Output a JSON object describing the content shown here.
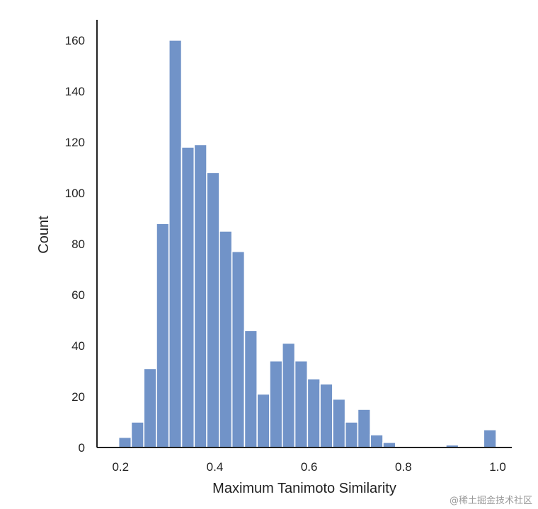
{
  "chart_data": {
    "type": "bar",
    "title": "",
    "xlabel": "Maximum Tanimoto Similarity",
    "ylabel": "Count",
    "xlim": [
      0.15,
      1.03
    ],
    "ylim": [
      0,
      168
    ],
    "bar_color": "#7193c8",
    "axis_color": "#222222",
    "grid": false,
    "x_ticks": [
      0.2,
      0.4,
      0.6,
      0.8,
      1.0
    ],
    "x_tick_labels": [
      "0.2",
      "0.4",
      "0.6",
      "0.8",
      "1.0"
    ],
    "y_ticks": [
      0,
      20,
      40,
      60,
      80,
      100,
      120,
      140,
      160
    ],
    "y_tick_labels": [
      "0",
      "20",
      "40",
      "60",
      "80",
      "100",
      "120",
      "140",
      "160"
    ],
    "bin_width": 0.0267,
    "bin_starts": [
      0.196,
      0.2227,
      0.2494,
      0.2761,
      0.3028,
      0.3295,
      0.3562,
      0.3829,
      0.4096,
      0.4363,
      0.463,
      0.4897,
      0.5164,
      0.5431,
      0.5698,
      0.5965,
      0.6232,
      0.6499,
      0.6766,
      0.7033,
      0.73,
      0.7567,
      0.7834,
      0.8101,
      0.8368,
      0.8635,
      0.8902,
      0.9169,
      0.9436,
      0.9703
    ],
    "values": [
      4,
      10,
      31,
      88,
      160,
      118,
      119,
      108,
      85,
      77,
      46,
      21,
      34,
      41,
      34,
      27,
      25,
      19,
      10,
      15,
      5,
      2,
      0,
      0,
      0,
      0,
      1,
      0,
      0,
      7
    ]
  },
  "watermark": "@稀土掘金技术社区"
}
